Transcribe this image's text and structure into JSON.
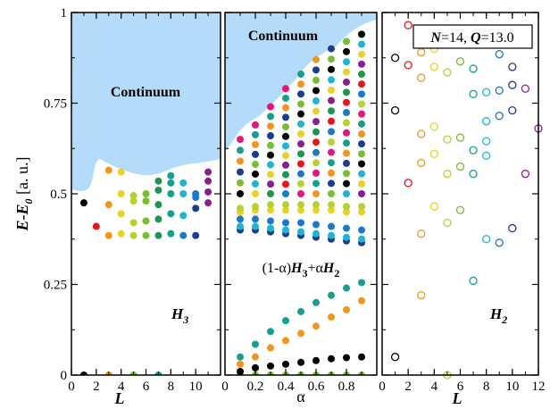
{
  "figure": {
    "ylabel": "E-E0 [a. u.]",
    "ylabel_parts": {
      "E": "E",
      "dash": "-",
      "E0": "E",
      "sub0": "0",
      "units": " [a. u.]"
    },
    "info_box": {
      "N": "N",
      "eq1": "=14, ",
      "Q": "Q",
      "eq2": "=13.0"
    }
  },
  "palette": [
    "#000000",
    "#e8141c",
    "#f0961e",
    "#e6d228",
    "#b4d232",
    "#78be32",
    "#1e9650",
    "#14a08c",
    "#1eb4d2",
    "#1e78c8",
    "#1e3c8c",
    "#8c1e8c",
    "#e6147d"
  ],
  "continuum_color": "#b4dcfa",
  "chart_data": [
    {
      "type": "scatter",
      "panel": "left",
      "xlabel": "L",
      "ylabel": "E-E0 [a. u.]",
      "xlim": [
        0,
        12
      ],
      "ylim": [
        0,
        1
      ],
      "xticks": [
        0,
        2,
        4,
        6,
        8,
        10
      ],
      "yticks": [
        0,
        0.25,
        0.5,
        0.75,
        1
      ],
      "ytick_labels": [
        "0",
        "0.25",
        "0.5",
        "0.75",
        "1"
      ],
      "annotations": {
        "continuum": "Continuum",
        "hamiltonian": "H",
        "hamiltonian_sub": "3"
      },
      "marker": "filled",
      "points": [
        {
          "x": 1,
          "y": 0.0,
          "c": 0
        },
        {
          "x": 1,
          "y": 0.475,
          "c": 0
        },
        {
          "x": 2,
          "y": 0.41,
          "c": 1
        },
        {
          "x": 3,
          "y": 0.0,
          "c": 2
        },
        {
          "x": 3,
          "y": 0.385,
          "c": 2
        },
        {
          "x": 3,
          "y": 0.47,
          "c": 2
        },
        {
          "x": 3,
          "y": 0.565,
          "c": 2
        },
        {
          "x": 4,
          "y": 0.39,
          "c": 3
        },
        {
          "x": 4,
          "y": 0.445,
          "c": 3
        },
        {
          "x": 4,
          "y": 0.5,
          "c": 3
        },
        {
          "x": 4,
          "y": 0.56,
          "c": 3
        },
        {
          "x": 5,
          "y": 0.0,
          "c": 5
        },
        {
          "x": 5,
          "y": 0.385,
          "c": 4
        },
        {
          "x": 5,
          "y": 0.42,
          "c": 4
        },
        {
          "x": 5,
          "y": 0.48,
          "c": 4
        },
        {
          "x": 5,
          "y": 0.495,
          "c": 4
        },
        {
          "x": 6,
          "y": 0.385,
          "c": 5
        },
        {
          "x": 6,
          "y": 0.425,
          "c": 5
        },
        {
          "x": 6,
          "y": 0.48,
          "c": 5
        },
        {
          "x": 6,
          "y": 0.5,
          "c": 5
        },
        {
          "x": 7,
          "y": 0.0,
          "c": 7
        },
        {
          "x": 7,
          "y": 0.385,
          "c": 6
        },
        {
          "x": 7,
          "y": 0.43,
          "c": 6
        },
        {
          "x": 7,
          "y": 0.47,
          "c": 6
        },
        {
          "x": 7,
          "y": 0.51,
          "c": 6
        },
        {
          "x": 7,
          "y": 0.535,
          "c": 6
        },
        {
          "x": 8,
          "y": 0.39,
          "c": 7
        },
        {
          "x": 8,
          "y": 0.445,
          "c": 7
        },
        {
          "x": 8,
          "y": 0.5,
          "c": 7
        },
        {
          "x": 8,
          "y": 0.53,
          "c": 7
        },
        {
          "x": 8,
          "y": 0.55,
          "c": 7
        },
        {
          "x": 9,
          "y": 0.385,
          "c": 9
        },
        {
          "x": 9,
          "y": 0.44,
          "c": 8
        },
        {
          "x": 9,
          "y": 0.5,
          "c": 8
        },
        {
          "x": 9,
          "y": 0.53,
          "c": 8
        },
        {
          "x": 10,
          "y": 0.385,
          "c": 10
        },
        {
          "x": 10,
          "y": 0.46,
          "c": 10
        },
        {
          "x": 10,
          "y": 0.49,
          "c": 9
        },
        {
          "x": 10,
          "y": 0.5,
          "c": 9
        },
        {
          "x": 11,
          "y": 0.475,
          "c": 11
        },
        {
          "x": 11,
          "y": 0.505,
          "c": 11
        },
        {
          "x": 11,
          "y": 0.535,
          "c": 11
        },
        {
          "x": 11,
          "y": 0.56,
          "c": 11
        }
      ]
    },
    {
      "type": "scatter",
      "panel": "middle",
      "xlabel": "α",
      "xlim": [
        0,
        1
      ],
      "ylim": [
        0,
        1
      ],
      "xticks": [
        0,
        0.2,
        0.4,
        0.6,
        0.8
      ],
      "annotations": {
        "continuum": "Continuum",
        "mix_open": "(1-α)",
        "mix_H": "H",
        "mix_sub3": "3",
        "mix_plus": "+α",
        "mix_H2": "H",
        "mix_sub2": "2"
      },
      "marker": "filled",
      "alpha_values": [
        0.1,
        0.2,
        0.3,
        0.4,
        0.5,
        0.6,
        0.7,
        0.8,
        0.9
      ],
      "low_series": [
        {
          "color_index": 5,
          "values": [
            0.0,
            0.0,
            0.0,
            0.0,
            0.0,
            0.0,
            0.0,
            0.0,
            0.0
          ]
        },
        {
          "color_index": 0,
          "values": [
            0.01,
            0.02,
            0.025,
            0.03,
            0.035,
            0.04,
            0.045,
            0.048,
            0.05
          ]
        },
        {
          "color_index": 2,
          "values": [
            0.03,
            0.05,
            0.075,
            0.095,
            0.115,
            0.135,
            0.16,
            0.18,
            0.205
          ]
        },
        {
          "color_index": 7,
          "values": [
            0.05,
            0.085,
            0.12,
            0.15,
            0.175,
            0.2,
            0.22,
            0.24,
            0.255
          ]
        }
      ],
      "band_series": [
        {
          "color_index": 10,
          "values": [
            0.4,
            0.4,
            0.395,
            0.39,
            0.385,
            0.38,
            0.375,
            0.37,
            0.365
          ]
        },
        {
          "color_index": 8,
          "values": [
            0.41,
            0.41,
            0.405,
            0.4,
            0.395,
            0.39,
            0.385,
            0.38,
            0.375
          ]
        },
        {
          "color_index": 3,
          "values": [
            0.45,
            0.455,
            0.455,
            0.455,
            0.455,
            0.455,
            0.455,
            0.45,
            0.45
          ]
        },
        {
          "color_index": 4,
          "values": [
            0.46,
            0.465,
            0.47,
            0.47,
            0.47,
            0.47,
            0.47,
            0.465,
            0.465
          ]
        },
        {
          "color_index": 9,
          "values": [
            0.43,
            0.43,
            0.425,
            0.42,
            0.42,
            0.415,
            0.41,
            0.405,
            0.4
          ]
        }
      ],
      "upper_range": {
        "alpha": [
          0.1,
          0.2,
          0.3,
          0.4,
          0.5,
          0.6,
          0.7,
          0.8,
          0.9
        ],
        "low": [
          0.5,
          0.5,
          0.5,
          0.5,
          0.5,
          0.5,
          0.5,
          0.5,
          0.5
        ],
        "high": [
          0.65,
          0.69,
          0.74,
          0.79,
          0.83,
          0.87,
          0.9,
          0.92,
          0.94
        ],
        "count": [
          6,
          8,
          10,
          12,
          13,
          14,
          15,
          16,
          17
        ]
      }
    },
    {
      "type": "scatter",
      "panel": "right",
      "xlabel": "L",
      "xlim": [
        0,
        12
      ],
      "ylim": [
        0,
        1
      ],
      "xticks": [
        0,
        2,
        4,
        6,
        8,
        10,
        12
      ],
      "annotations": {
        "hamiltonian": "H",
        "hamiltonian_sub": "2"
      },
      "marker": "open",
      "points": [
        {
          "x": 1,
          "y": 0.05,
          "c": 0
        },
        {
          "x": 1,
          "y": 0.73,
          "c": 0
        },
        {
          "x": 1,
          "y": 0.875,
          "c": 0
        },
        {
          "x": 2,
          "y": 0.53,
          "c": 1
        },
        {
          "x": 2,
          "y": 0.855,
          "c": 1
        },
        {
          "x": 2,
          "y": 0.965,
          "c": 1
        },
        {
          "x": 3,
          "y": 0.22,
          "c": 2
        },
        {
          "x": 3,
          "y": 0.39,
          "c": 2
        },
        {
          "x": 3,
          "y": 0.585,
          "c": 2
        },
        {
          "x": 3,
          "y": 0.665,
          "c": 2
        },
        {
          "x": 3,
          "y": 0.82,
          "c": 2
        },
        {
          "x": 3,
          "y": 0.89,
          "c": 2
        },
        {
          "x": 4,
          "y": 0.465,
          "c": 3
        },
        {
          "x": 4,
          "y": 0.61,
          "c": 3
        },
        {
          "x": 4,
          "y": 0.685,
          "c": 3
        },
        {
          "x": 4,
          "y": 0.85,
          "c": 3
        },
        {
          "x": 4,
          "y": 0.9,
          "c": 3
        },
        {
          "x": 5,
          "y": 0.0,
          "c": 4
        },
        {
          "x": 5,
          "y": 0.42,
          "c": 4
        },
        {
          "x": 5,
          "y": 0.555,
          "c": 4
        },
        {
          "x": 5,
          "y": 0.65,
          "c": 4
        },
        {
          "x": 5,
          "y": 0.835,
          "c": 4
        },
        {
          "x": 6,
          "y": 0.455,
          "c": 5
        },
        {
          "x": 6,
          "y": 0.575,
          "c": 5
        },
        {
          "x": 6,
          "y": 0.655,
          "c": 5
        },
        {
          "x": 6,
          "y": 0.865,
          "c": 5
        },
        {
          "x": 7,
          "y": 0.26,
          "c": 7
        },
        {
          "x": 7,
          "y": 0.555,
          "c": 7
        },
        {
          "x": 7,
          "y": 0.62,
          "c": 7
        },
        {
          "x": 7,
          "y": 0.775,
          "c": 7
        },
        {
          "x": 7,
          "y": 0.845,
          "c": 7
        },
        {
          "x": 8,
          "y": 0.375,
          "c": 8
        },
        {
          "x": 8,
          "y": 0.605,
          "c": 8
        },
        {
          "x": 8,
          "y": 0.645,
          "c": 8
        },
        {
          "x": 8,
          "y": 0.7,
          "c": 8
        },
        {
          "x": 8,
          "y": 0.78,
          "c": 8
        },
        {
          "x": 9,
          "y": 0.365,
          "c": 9
        },
        {
          "x": 9,
          "y": 0.715,
          "c": 9
        },
        {
          "x": 9,
          "y": 0.785,
          "c": 9
        },
        {
          "x": 9,
          "y": 0.885,
          "c": 9
        },
        {
          "x": 10,
          "y": 0.405,
          "c": 10
        },
        {
          "x": 10,
          "y": 0.73,
          "c": 10
        },
        {
          "x": 10,
          "y": 0.8,
          "c": 10
        },
        {
          "x": 10,
          "y": 0.85,
          "c": 10
        },
        {
          "x": 11,
          "y": 0.555,
          "c": 11
        },
        {
          "x": 11,
          "y": 0.79,
          "c": 11
        },
        {
          "x": 12,
          "y": 0.68,
          "c": 11
        }
      ]
    }
  ]
}
